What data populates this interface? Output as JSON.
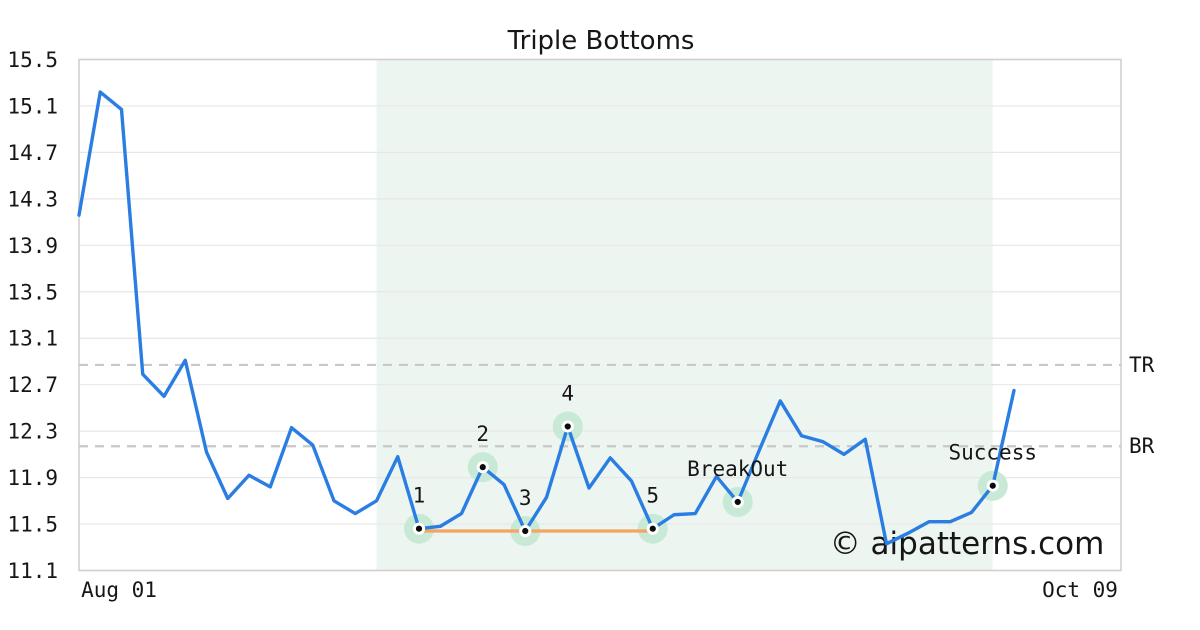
{
  "watermark": "© aipatterns.com",
  "colors": {
    "price_line": "#2a7de2",
    "neckline": "#f4a460",
    "marker_halo": "#c7e9d6",
    "marker_dot": "#0a0a0a",
    "marker_ring": "#ffffff",
    "shaded_region": "#edf5f1",
    "level_dash": "#c8c8c8",
    "gridline": "#e7e7e7",
    "frame": "#d0d0d0",
    "text": "#161616",
    "watermark": "#c7c8f2",
    "background": "#ffffff"
  },
  "chart_data": {
    "type": "line",
    "title": "Triple Bottoms",
    "x_axis": {
      "tick_labels": [
        "Aug 01",
        "Oct 09"
      ]
    },
    "ylim": [
      11.1,
      15.5
    ],
    "y_ticks": [
      11.1,
      11.5,
      11.9,
      12.3,
      12.7,
      13.1,
      13.5,
      13.9,
      14.3,
      14.7,
      15.1,
      15.5
    ],
    "grid": "horizontal",
    "values": [
      14.16,
      15.22,
      15.07,
      12.79,
      12.6,
      12.91,
      12.12,
      11.72,
      11.92,
      11.82,
      12.33,
      12.18,
      11.7,
      11.59,
      11.7,
      12.08,
      11.46,
      11.48,
      11.59,
      11.99,
      11.84,
      11.44,
      11.73,
      12.34,
      11.81,
      12.07,
      11.87,
      11.46,
      11.58,
      11.59,
      11.91,
      11.69,
      12.13,
      12.56,
      12.26,
      12.21,
      12.1,
      12.23,
      11.33,
      11.42,
      11.52,
      11.52,
      11.6,
      11.83,
      12.65
    ],
    "levels": [
      {
        "label": "TR",
        "value": 12.87
      },
      {
        "label": "BR",
        "value": 12.17
      }
    ],
    "neckline": {
      "value": 11.44,
      "from_index": 16,
      "to_index": 27
    },
    "shaded_region": {
      "from_index": 14,
      "to_index": 43
    },
    "annotations": [
      {
        "label": "1",
        "index": 16,
        "value": 11.46
      },
      {
        "label": "2",
        "index": 19,
        "value": 11.99
      },
      {
        "label": "3",
        "index": 21,
        "value": 11.44
      },
      {
        "label": "4",
        "index": 23,
        "value": 12.34
      },
      {
        "label": "5",
        "index": 27,
        "value": 11.46
      },
      {
        "label": "BreakOut",
        "index": 31,
        "value": 11.69
      },
      {
        "label": "Success",
        "index": 43,
        "value": 11.83
      }
    ]
  }
}
